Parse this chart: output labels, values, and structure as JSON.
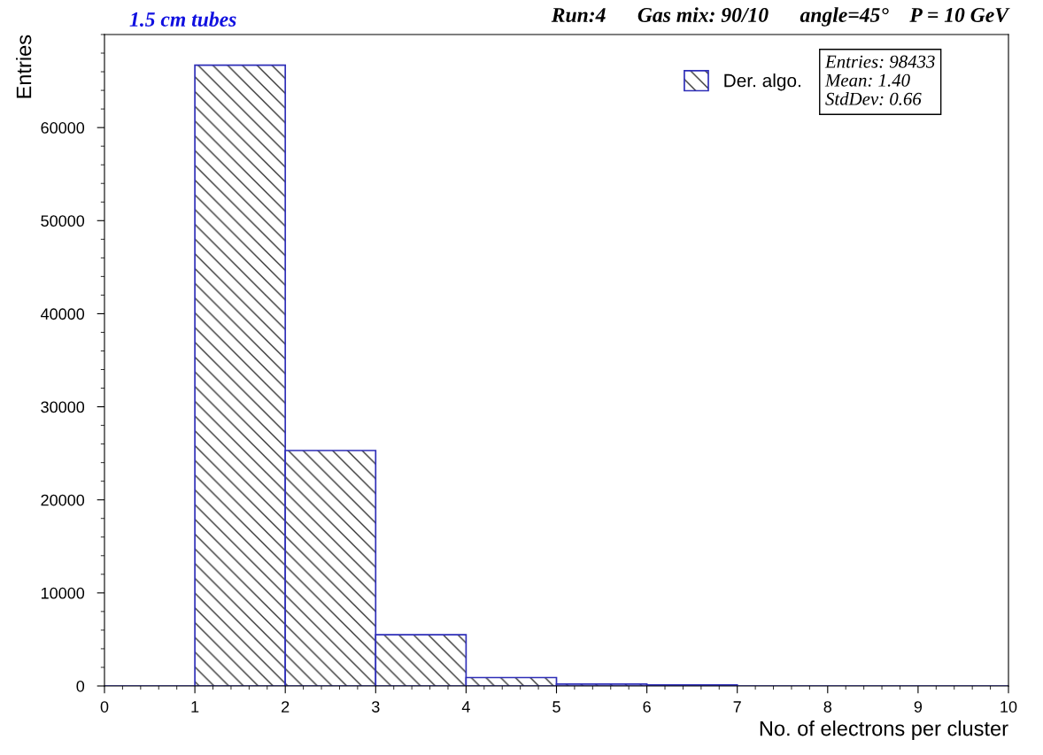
{
  "chart_data": {
    "type": "histogram",
    "title": "1.5 cm tubes",
    "subtitle": "Run:4      Gas mix: 90/10      angle=45°    P = 10 GeV",
    "xlabel": "No. of electrons per cluster",
    "ylabel": "Entries",
    "bins": [
      0,
      1,
      2,
      3,
      4,
      5,
      6,
      7,
      8,
      9,
      10
    ],
    "series": [
      {
        "name": "Der. algo.",
        "color": "#2e2eb8",
        "values": [
          0,
          66700,
          25300,
          5500,
          900,
          200,
          100,
          0,
          0,
          0
        ]
      }
    ],
    "xlim": [
      0,
      10
    ],
    "xticks": [
      0,
      1,
      2,
      3,
      4,
      5,
      6,
      7,
      8,
      9,
      10
    ],
    "ylim": [
      0,
      70000
    ],
    "yticks": [
      0,
      10000,
      20000,
      30000,
      40000,
      50000,
      60000
    ],
    "annotations": [
      "Entries: 98433",
      "Mean: 1.40",
      "StdDev: 0.66"
    ],
    "legend": "top right",
    "grid": false
  }
}
